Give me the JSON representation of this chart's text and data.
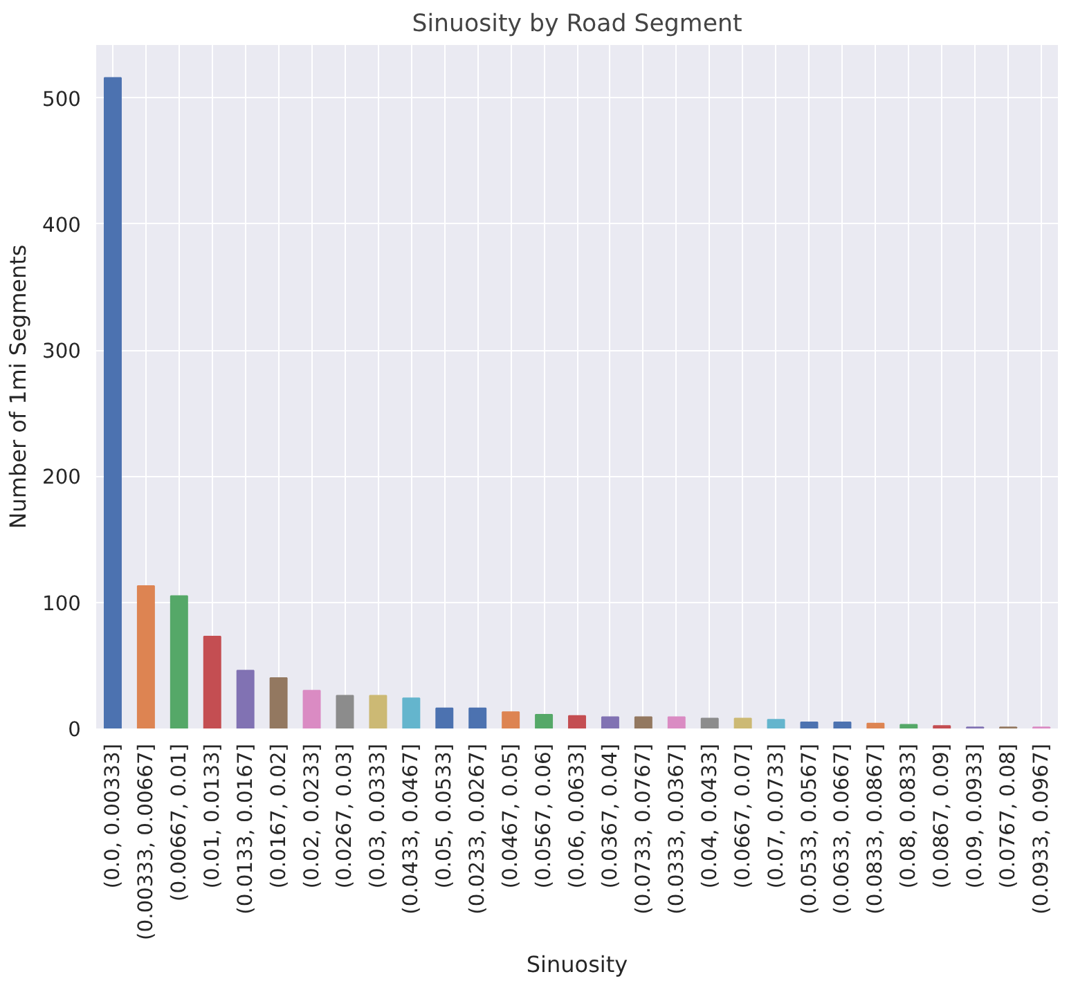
{
  "chart_data": {
    "type": "bar",
    "title": "Sinuosity by Road Segment",
    "xlabel": "Sinuosity",
    "ylabel": "Number of 1mi Segments",
    "categories": [
      "(0.0, 0.00333]",
      "(0.00333, 0.00667]",
      "(0.00667, 0.01]",
      "(0.01, 0.0133]",
      "(0.0133, 0.0167]",
      "(0.0167, 0.02]",
      "(0.02, 0.0233]",
      "(0.0267, 0.03]",
      "(0.03, 0.0333]",
      "(0.0433, 0.0467]",
      "(0.05, 0.0533]",
      "(0.0233, 0.0267]",
      "(0.0467, 0.05]",
      "(0.0567, 0.06]",
      "(0.06, 0.0633]",
      "(0.0367, 0.04]",
      "(0.0733, 0.0767]",
      "(0.0333, 0.0367]",
      "(0.04, 0.0433]",
      "(0.0667, 0.07]",
      "(0.07, 0.0733]",
      "(0.0533, 0.0567]",
      "(0.0633, 0.0667]",
      "(0.0833, 0.0867]",
      "(0.08, 0.0833]",
      "(0.0867, 0.09]",
      "(0.09, 0.0933]",
      "(0.0767, 0.08]",
      "(0.0933, 0.0967]"
    ],
    "values": [
      516,
      113,
      105,
      73,
      46,
      40,
      30,
      26,
      26,
      24,
      16,
      16,
      13,
      11,
      10,
      9,
      9,
      9,
      8,
      8,
      7,
      5,
      5,
      4,
      3,
      2,
      1,
      1,
      1
    ],
    "colors": [
      "#4c72b0",
      "#dd8452",
      "#55a868",
      "#c44e52",
      "#8172b3",
      "#937860",
      "#da8bc3",
      "#8c8c8c",
      "#ccb974",
      "#64b5cd",
      "#4c72b0",
      "#4c72b0",
      "#dd8452",
      "#55a868",
      "#c44e52",
      "#8172b3",
      "#937860",
      "#da8bc3",
      "#8c8c8c",
      "#ccb974",
      "#64b5cd",
      "#4c72b0",
      "#4c72b0",
      "#dd8452",
      "#55a868",
      "#c44e52",
      "#8172b3",
      "#937860",
      "#da8bc3"
    ],
    "ylim": [
      0,
      542
    ],
    "yticks": [
      0,
      100,
      200,
      300,
      400,
      500
    ],
    "grid": true
  }
}
